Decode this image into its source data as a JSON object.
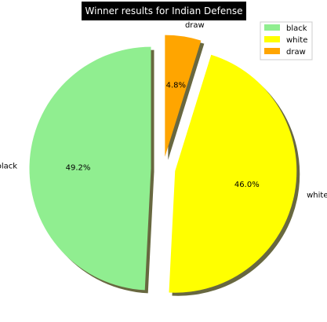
{
  "chart_data": {
    "type": "pie",
    "title": "Winner results for Indian Defense",
    "categories": [
      "black",
      "white",
      "draw"
    ],
    "values": [
      49.2,
      46.0,
      4.8
    ],
    "percent_labels": [
      "49.2%",
      "46.0%",
      "4.8%"
    ],
    "colors": [
      "#90ee90",
      "#ffff00",
      "#ffa500"
    ],
    "exploded": [
      true,
      true,
      true
    ],
    "shadow": true,
    "start_angle": 90,
    "direction": "counterclockwise",
    "legend": {
      "placement": "top-right",
      "entries": [
        "black",
        "white",
        "draw"
      ]
    }
  }
}
